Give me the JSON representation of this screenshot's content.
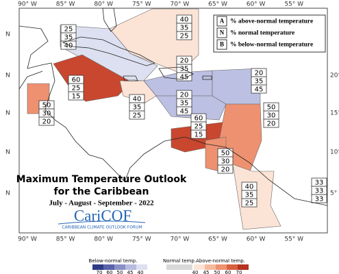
{
  "map": {
    "title_lines": [
      "Maximum Temperature Outlook",
      "for the Caribbean"
    ],
    "period": "July - August - September - 2022",
    "logo": "CariCOF",
    "logo_subtitle": "CARIBBEAN CLIMATE OUTLOOK FORUM",
    "lon_labels": [
      "90° W",
      "85° W",
      "80° W",
      "75° W",
      "70° W",
      "65° W",
      "60° W",
      "55° W"
    ],
    "lat_labels_left": [
      "N",
      "N",
      "N",
      "N",
      "N"
    ],
    "lat_labels_right": [
      "20°",
      "15°",
      "10°",
      "5°"
    ],
    "key": [
      {
        "letter": "A",
        "text": "% above-normal temperature"
      },
      {
        "letter": "N",
        "text": "% normal temperature"
      },
      {
        "letter": "B",
        "text": "% below-normal temperature"
      }
    ],
    "regions": [
      {
        "values": [
          40,
          35,
          25
        ],
        "color": "#fbe3d6"
      },
      {
        "values": [
          25,
          35,
          40
        ],
        "color": "#dde0f0"
      },
      {
        "values": [
          60,
          25,
          15
        ],
        "color": "#c9472f"
      },
      {
        "values": [
          50,
          30,
          20
        ],
        "color": "#ee9170"
      },
      {
        "values": [
          40,
          35,
          25
        ],
        "color": "#fbe3d6"
      },
      {
        "values": [
          20,
          35,
          45
        ],
        "color": "#bcc0e2"
      },
      {
        "values": [
          20,
          35,
          45
        ],
        "color": "#bcc0e2"
      },
      {
        "values": [
          20,
          35,
          45
        ],
        "color": "#bcc0e2"
      },
      {
        "values": [
          60,
          25,
          15
        ],
        "color": "#c9472f"
      },
      {
        "values": [
          50,
          30,
          20
        ],
        "color": "#ee9170"
      },
      {
        "values": [
          50,
          30,
          20
        ],
        "color": "#ee9170"
      },
      {
        "values": [
          40,
          35,
          25
        ],
        "color": "#fbe3d6"
      },
      {
        "values": [
          33,
          33,
          33
        ],
        "color": "#ffffff"
      }
    ],
    "colorbar": {
      "below": {
        "label": "Below-normal temp.",
        "ticks": [
          70,
          60,
          50,
          45,
          40
        ],
        "colors": [
          "#2f3a86",
          "#5a63a8",
          "#8a90c6",
          "#b7bbdf",
          "#dde0f0"
        ]
      },
      "normal": {
        "label": "Normal temp.",
        "color": "#d9d9d9"
      },
      "above": {
        "label": "Above-normal temp.",
        "ticks": [
          40,
          45,
          50,
          60,
          70
        ],
        "colors": [
          "#fbe3d6",
          "#f5b99d",
          "#ee9170",
          "#d9603e",
          "#b43322"
        ]
      }
    }
  }
}
